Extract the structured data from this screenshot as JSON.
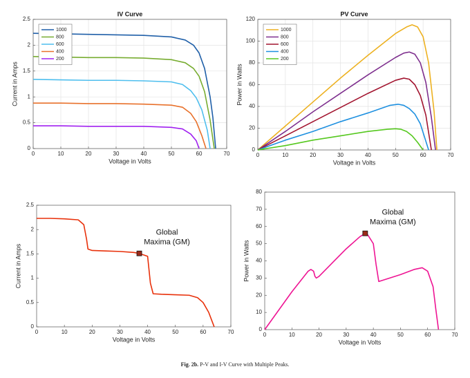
{
  "chart_data": [
    {
      "type": "line",
      "title": "IV Curve",
      "xlabel": "Voltage in Volts",
      "ylabel": "Current in Amps",
      "xlim": [
        0,
        70
      ],
      "xticks": [
        0,
        10,
        20,
        30,
        40,
        50,
        60,
        70
      ],
      "ylim": [
        0,
        2.5
      ],
      "yticks": [
        0,
        0.5,
        1,
        1.5,
        2,
        2.5
      ],
      "grid": true,
      "legend": "upper-left",
      "series": [
        {
          "name": "1000",
          "color": "#1f5fa8",
          "x": [
            0,
            10,
            20,
            30,
            40,
            50,
            55,
            58,
            60,
            62,
            64,
            65,
            66
          ],
          "values": [
            2.23,
            2.22,
            2.21,
            2.2,
            2.19,
            2.16,
            2.1,
            2.0,
            1.85,
            1.55,
            1.0,
            0.6,
            0
          ]
        },
        {
          "name": "800",
          "color": "#77ac30",
          "x": [
            0,
            10,
            20,
            30,
            40,
            50,
            55,
            58,
            60,
            62,
            64,
            65.5
          ],
          "values": [
            1.78,
            1.77,
            1.76,
            1.76,
            1.75,
            1.72,
            1.66,
            1.55,
            1.4,
            1.1,
            0.55,
            0
          ]
        },
        {
          "name": "600",
          "color": "#4dbeee",
          "x": [
            0,
            10,
            20,
            30,
            40,
            50,
            54,
            57,
            59,
            61,
            63,
            64
          ],
          "values": [
            1.34,
            1.33,
            1.32,
            1.32,
            1.31,
            1.29,
            1.24,
            1.12,
            0.98,
            0.75,
            0.35,
            0
          ]
        },
        {
          "name": "400",
          "color": "#e8702a",
          "x": [
            0,
            10,
            20,
            30,
            40,
            50,
            54,
            57,
            59,
            61,
            62.5
          ],
          "values": [
            0.88,
            0.88,
            0.87,
            0.87,
            0.86,
            0.84,
            0.8,
            0.68,
            0.52,
            0.25,
            0
          ]
        },
        {
          "name": "200",
          "color": "#a020f0",
          "x": [
            0,
            10,
            20,
            30,
            40,
            50,
            54,
            57,
            59,
            60
          ],
          "values": [
            0.44,
            0.44,
            0.43,
            0.43,
            0.43,
            0.41,
            0.38,
            0.28,
            0.15,
            0
          ]
        }
      ]
    },
    {
      "type": "line",
      "title": "PV Curve",
      "xlabel": "Voltage in Volts",
      "ylabel": "Power in Watts",
      "xlim": [
        0,
        70
      ],
      "xticks": [
        0,
        10,
        20,
        30,
        40,
        50,
        60,
        70
      ],
      "ylim": [
        0,
        120
      ],
      "yticks": [
        0,
        20,
        40,
        60,
        80,
        100,
        120
      ],
      "grid": true,
      "legend": "upper-left",
      "series": [
        {
          "name": "1000",
          "color": "#edb120",
          "x": [
            0,
            10,
            20,
            30,
            40,
            50,
            54,
            56,
            58,
            60,
            62,
            64,
            65
          ],
          "values": [
            0,
            22,
            44,
            66,
            87,
            107,
            113,
            115,
            113,
            104,
            80,
            35,
            0
          ]
        },
        {
          "name": "800",
          "color": "#7e2f8e",
          "x": [
            0,
            10,
            20,
            30,
            40,
            50,
            53,
            55,
            57,
            59,
            61,
            63,
            64.5
          ],
          "values": [
            0,
            17,
            35,
            52,
            69,
            85,
            89,
            90,
            88,
            80,
            62,
            30,
            0
          ]
        },
        {
          "name": "600",
          "color": "#a2142f",
          "x": [
            0,
            10,
            20,
            30,
            40,
            50,
            53,
            55,
            57,
            59,
            61,
            63
          ],
          "values": [
            0,
            13,
            26,
            39,
            52,
            64,
            66,
            65,
            60,
            50,
            32,
            0
          ]
        },
        {
          "name": "400",
          "color": "#1e90e0",
          "x": [
            0,
            10,
            20,
            30,
            40,
            48,
            51,
            53,
            55,
            57,
            59,
            61,
            62
          ],
          "values": [
            0,
            9,
            17,
            26,
            34,
            41,
            42,
            41,
            38,
            33,
            24,
            8,
            0
          ]
        },
        {
          "name": "200",
          "color": "#55c81e",
          "x": [
            0,
            10,
            20,
            30,
            40,
            47,
            50,
            52,
            54,
            56,
            58,
            60
          ],
          "values": [
            0,
            4,
            9,
            13,
            17,
            19,
            19.5,
            19,
            17,
            13,
            7,
            0
          ]
        }
      ]
    },
    {
      "type": "line",
      "xlabel": "Voltage in Volts",
      "ylabel": "Current in Amps",
      "xlim": [
        0,
        70
      ],
      "xticks": [
        0,
        10,
        20,
        30,
        40,
        50,
        60,
        70
      ],
      "ylim": [
        0,
        2.5
      ],
      "yticks": [
        0,
        0.5,
        1,
        1.5,
        2,
        2.5
      ],
      "grid": false,
      "series": [
        {
          "color": "#e8300a",
          "x": [
            0,
            5,
            10,
            15,
            17,
            18,
            18.5,
            20,
            25,
            30,
            35,
            37,
            40,
            41,
            42,
            45,
            50,
            55,
            58,
            60,
            62,
            63,
            64
          ],
          "values": [
            2.23,
            2.23,
            2.22,
            2.2,
            2.1,
            1.8,
            1.6,
            1.57,
            1.56,
            1.55,
            1.53,
            1.51,
            1.45,
            0.9,
            0.68,
            0.67,
            0.66,
            0.65,
            0.6,
            0.5,
            0.3,
            0.15,
            0
          ]
        }
      ],
      "annotation": {
        "text": [
          "Global",
          "Maxima (GM)"
        ],
        "x": 37,
        "y": 1.51,
        "color": "#9b2a1a"
      }
    },
    {
      "type": "line",
      "xlabel": "Voltage in Volts",
      "ylabel": "Power in Watts",
      "xlim": [
        0,
        70
      ],
      "xticks": [
        0,
        10,
        20,
        30,
        40,
        50,
        60,
        70
      ],
      "ylim": [
        0,
        80
      ],
      "yticks": [
        0,
        10,
        20,
        30,
        40,
        50,
        60,
        70,
        80
      ],
      "grid": false,
      "series": [
        {
          "color": "#ee1493",
          "x": [
            0,
            5,
            10,
            15,
            16,
            17,
            18,
            18.5,
            19,
            20,
            25,
            30,
            35,
            37,
            38,
            40,
            41,
            42,
            45,
            50,
            55,
            58,
            60,
            62,
            63,
            64
          ],
          "values": [
            0,
            11,
            22,
            32,
            34,
            35,
            34,
            31,
            30,
            31,
            39,
            47,
            54,
            56,
            55,
            50,
            38,
            28,
            29.5,
            32,
            35,
            36,
            34,
            25,
            12,
            0
          ]
        }
      ],
      "annotation": {
        "text": [
          "Global",
          "Maxima (GM)"
        ],
        "x": 37,
        "y": 56,
        "color": "#9b2a1a"
      }
    }
  ],
  "caption": {
    "label": "Fig. 2b.",
    "text": "P-V and I-V Curve with Multiple Peaks."
  }
}
